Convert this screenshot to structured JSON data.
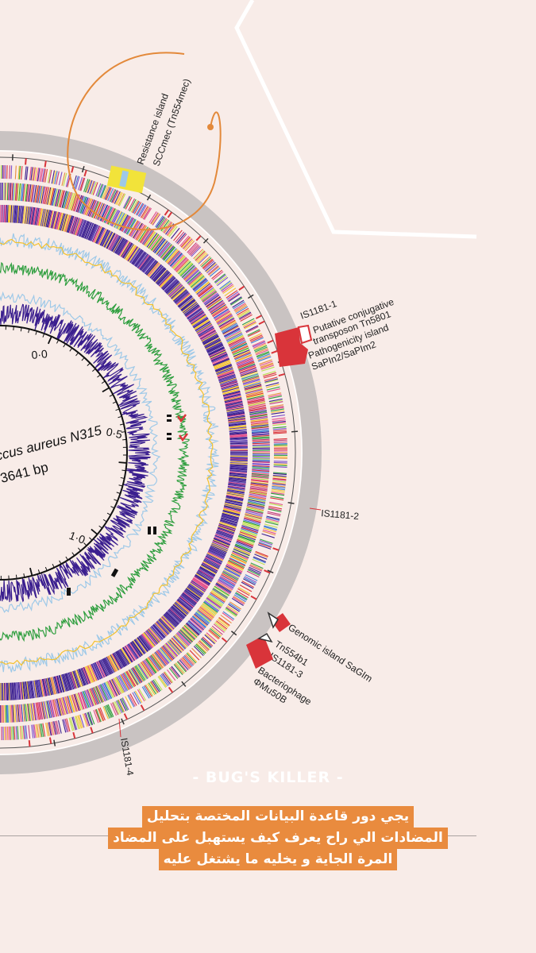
{
  "genome": {
    "organism": "ccus aureus N315",
    "size": "3641 bp",
    "ticks": [
      "0·0",
      "0·5",
      "1·0"
    ]
  },
  "annotations": {
    "resistance_island": [
      "Resistance island",
      "SCCmec (Tn554mec)"
    ],
    "is1181_1": "IS1181-1",
    "transposon": [
      "Putative conjugative",
      "transposon Tn5801"
    ],
    "pathogenicity": [
      "Pathogenicity island",
      "SaPIn2/SaPIm2"
    ],
    "is1181_2": "IS1181-2",
    "genomic_island": "Genomic island SaGIm",
    "tn554b1": "Tn554b1",
    "is1181_3": "IS1181-3",
    "bacteriophage": [
      "Bacteriophage",
      "ΦMu50B"
    ],
    "is1181_4": "IS1181-4"
  },
  "watermark": "- BUG'S KILLER -",
  "caption": {
    "line1": "يجي دور قاعدة البيانات المختصة بتحليل",
    "line2": "المضادات الي راح يعرف كيف يستهبل على المضاد",
    "line3": "المرة الجاية و يخليه ما يشتغل عليه"
  },
  "colors": {
    "background": "#f8ece8",
    "outer_ring": "#c9c3c2",
    "purple": "#3b1f8f",
    "green": "#2e9e3e",
    "light_blue": "#9ec9e8",
    "orange_annotation": "#e3893a",
    "red_marker": "#d9343a",
    "highlight_yellow": "#f2e33a",
    "caption_bg": "#e98b3e"
  }
}
